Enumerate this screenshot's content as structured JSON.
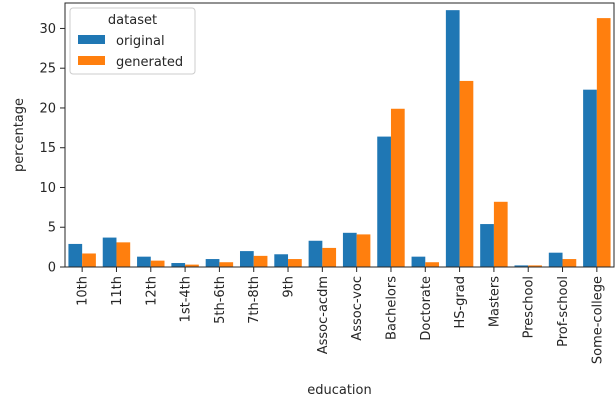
{
  "chart_data": {
    "type": "bar",
    "xlabel": "education",
    "ylabel": "percentage",
    "ylim": [
      0,
      33.2
    ],
    "yticks": [
      0,
      5,
      10,
      15,
      20,
      25,
      30
    ],
    "grid": false,
    "legend": {
      "title": "dataset",
      "placement": "top-left"
    },
    "categories": [
      "10th",
      "11th",
      "12th",
      "1st-4th",
      "5th-6th",
      "7th-8th",
      "9th",
      "Assoc-acdm",
      "Assoc-voc",
      "Bachelors",
      "Doctorate",
      "HS-grad",
      "Masters",
      "Preschool",
      "Prof-school",
      "Some-college"
    ],
    "series": [
      {
        "name": "original",
        "color": "#1f77b4",
        "values": [
          2.9,
          3.7,
          1.3,
          0.5,
          1.0,
          2.0,
          1.6,
          3.3,
          4.3,
          16.4,
          1.3,
          32.3,
          5.4,
          0.2,
          1.8,
          22.3
        ]
      },
      {
        "name": "generated",
        "color": "#ff7f0e",
        "values": [
          1.7,
          3.1,
          0.8,
          0.3,
          0.6,
          1.4,
          1.0,
          2.4,
          4.1,
          19.9,
          0.6,
          23.4,
          8.2,
          0.2,
          1.0,
          31.3
        ]
      }
    ]
  }
}
